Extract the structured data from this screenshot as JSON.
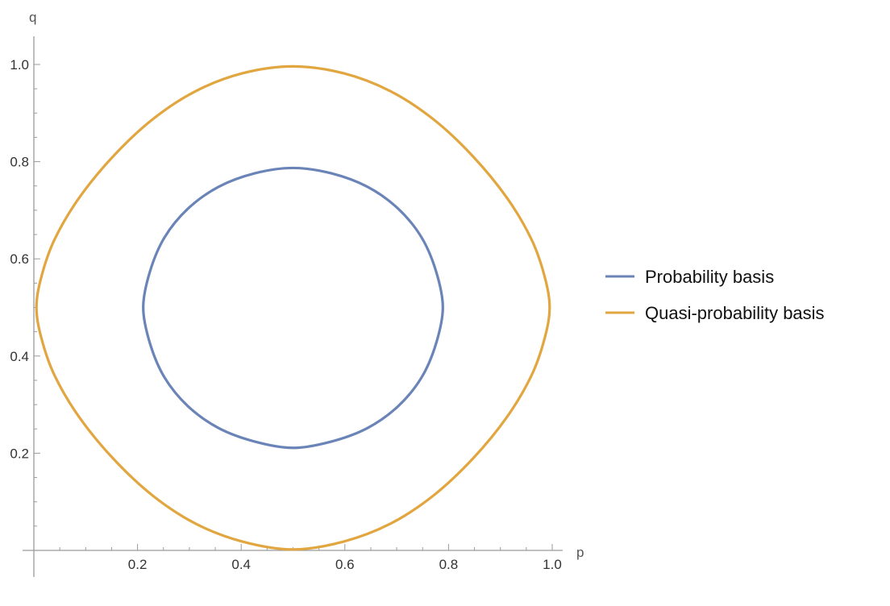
{
  "chart_data": {
    "type": "line",
    "xlabel": "p",
    "ylabel": "q",
    "xlim": [
      0,
      1.0
    ],
    "ylim": [
      0,
      1.0
    ],
    "x_tick_labels": [
      "0.2",
      "0.4",
      "0.6",
      "0.8",
      "1.0"
    ],
    "y_tick_labels": [
      "0.2",
      "0.4",
      "0.6",
      "0.8",
      "1.0"
    ],
    "legend_position": "right",
    "grid": false,
    "series": [
      {
        "name": "Probability basis",
        "color": "#6A84B8",
        "x": [
          0.5,
          0.574,
          0.644,
          0.703,
          0.748,
          0.776,
          0.789,
          0.776,
          0.748,
          0.703,
          0.644,
          0.574,
          0.5,
          0.426,
          0.356,
          0.297,
          0.252,
          0.224,
          0.211,
          0.224,
          0.252,
          0.297,
          0.356,
          0.426,
          0.5
        ],
        "y": [
          0.787,
          0.776,
          0.748,
          0.703,
          0.644,
          0.574,
          0.5,
          0.426,
          0.356,
          0.297,
          0.252,
          0.224,
          0.211,
          0.224,
          0.252,
          0.297,
          0.356,
          0.426,
          0.5,
          0.574,
          0.644,
          0.703,
          0.748,
          0.776,
          0.787
        ]
      },
      {
        "name": "Quasi-probability basis",
        "color": "#E1A63F",
        "x": [
          0.5,
          0.597,
          0.688,
          0.771,
          0.847,
          0.913,
          0.96,
          0.985,
          0.995,
          0.985,
          0.96,
          0.913,
          0.847,
          0.771,
          0.688,
          0.597,
          0.5,
          0.403,
          0.312,
          0.229,
          0.153,
          0.087,
          0.04,
          0.015,
          0.005,
          0.015,
          0.04,
          0.087,
          0.153,
          0.229,
          0.312,
          0.403,
          0.5
        ],
        "y": [
          0.996,
          0.982,
          0.945,
          0.887,
          0.811,
          0.725,
          0.64,
          0.565,
          0.5,
          0.435,
          0.36,
          0.275,
          0.189,
          0.113,
          0.055,
          0.018,
          0.002,
          0.018,
          0.055,
          0.113,
          0.189,
          0.275,
          0.36,
          0.435,
          0.5,
          0.565,
          0.64,
          0.725,
          0.811,
          0.887,
          0.945,
          0.982,
          0.996
        ]
      }
    ]
  }
}
